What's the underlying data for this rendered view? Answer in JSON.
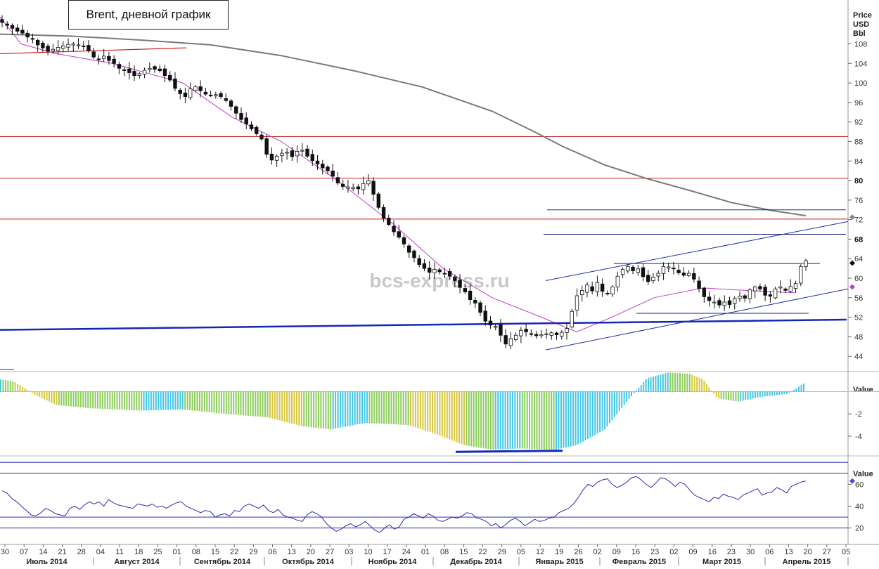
{
  "chart_data": [
    {
      "type": "candlestick",
      "title": "Brent, дневной график",
      "ylabel": "Price\nUSD\nBbl",
      "ylabel_lines": [
        "Price",
        "USD",
        "Bbl"
      ],
      "ylim": [
        41,
        117
      ],
      "yticks": [
        44,
        48,
        52,
        56,
        60,
        64,
        68,
        72,
        76,
        80,
        84,
        88,
        92,
        96,
        100,
        104,
        108
      ],
      "watermark": "bcs-express.ru",
      "x_day_labels": [
        "30",
        "07",
        "14",
        "21",
        "28",
        "04",
        "11",
        "18",
        "25",
        "01",
        "08",
        "15",
        "22",
        "29",
        "06",
        "13",
        "20",
        "27",
        "03",
        "10",
        "17",
        "24",
        "01",
        "08",
        "15",
        "22",
        "29",
        "05",
        "12",
        "19",
        "26",
        "02",
        "09",
        "16",
        "23",
        "02",
        "09",
        "16",
        "23",
        "30",
        "06",
        "13",
        "20",
        "27",
        "05"
      ],
      "x_month_labels": [
        "Июль 2014",
        "Август 2014",
        "Сентябрь 2014",
        "Октябрь 2014",
        "Ноябрь 2014",
        "Декабрь 2014",
        "Январь 2015",
        "Февраль 2015",
        "Март 2015",
        "Апрель 2015"
      ],
      "close_path": [
        112.4,
        111.8,
        111.2,
        110.6,
        110.2,
        109.4,
        109.0,
        107.8,
        107.2,
        106.5,
        106.9,
        107.3,
        107.6,
        107.9,
        108.0,
        107.8,
        107.5,
        106.6,
        105.3,
        104.9,
        105.5,
        104.6,
        104.0,
        103.0,
        102.6,
        102.1,
        101.5,
        101.9,
        102.6,
        103.0,
        102.8,
        102.5,
        101.5,
        100.6,
        98.9,
        97.8,
        97.2,
        98.8,
        99.2,
        98.4,
        97.7,
        97.5,
        97.6,
        97.2,
        96.4,
        95.2,
        93.8,
        92.5,
        91.6,
        90.6,
        89.6,
        88.5,
        85.4,
        84.2,
        85.0,
        85.6,
        85.8,
        84.9,
        86.0,
        86.2,
        85.0,
        84.1,
        83.4,
        82.6,
        82.0,
        80.9,
        79.5,
        78.8,
        78.7,
        78.6,
        78.3,
        79.4,
        80.0,
        77.2,
        74.5,
        72.3,
        71.0,
        69.5,
        68.4,
        67.0,
        65.3,
        64.2,
        62.8,
        62.0,
        61.2,
        61.8,
        61.3,
        61.0,
        60.4,
        59.5,
        58.1,
        57.2,
        55.6,
        54.9,
        53.0,
        51.2,
        50.4,
        50.1,
        48.3,
        46.5,
        47.6,
        48.3,
        49.3,
        49.0,
        48.5,
        48.2,
        48.4,
        48.6,
        48.8,
        48.4,
        48.9,
        49.7,
        53.2,
        56.4,
        57.5,
        58.6,
        57.4,
        59.1,
        57.3,
        56.9,
        58.2,
        60.4,
        61.8,
        62.4,
        61.5,
        61.9,
        60.3,
        59.3,
        60.2,
        61.0,
        62.4,
        62.3,
        61.9,
        61.1,
        60.6,
        61.0,
        59.8,
        57.9,
        56.2,
        55.4,
        55.1,
        54.5,
        55.1,
        54.6,
        55.8,
        56.3,
        55.9,
        57.6,
        58.2,
        57.8,
        56.5,
        56.3,
        57.8,
        58.2,
        57.5,
        58.3,
        58.9,
        62.4,
        63.6
      ],
      "ma_short": {
        "color": "#c03cc8",
        "points": [
          [
            0,
            113.5
          ],
          [
            30,
            108
          ],
          [
            80,
            106
          ],
          [
            160,
            104
          ],
          [
            260,
            100
          ],
          [
            330,
            93
          ],
          [
            400,
            88
          ],
          [
            480,
            80
          ],
          [
            560,
            71
          ],
          [
            630,
            62
          ],
          [
            700,
            56
          ],
          [
            770,
            52
          ],
          [
            820,
            49
          ],
          [
            870,
            52
          ],
          [
            930,
            56
          ],
          [
            1000,
            58
          ],
          [
            1060,
            57.5
          ],
          [
            1130,
            57
          ]
        ]
      },
      "ma_long": {
        "color": "#7a7a7a",
        "points": [
          [
            0,
            110
          ],
          [
            100,
            109.6
          ],
          [
            200,
            108.8
          ],
          [
            300,
            107.8
          ],
          [
            400,
            105.6
          ],
          [
            500,
            102.6
          ],
          [
            600,
            99.2
          ],
          [
            700,
            94.2
          ],
          [
            760,
            90
          ],
          [
            800,
            87
          ],
          [
            860,
            83.2
          ],
          [
            920,
            80.4
          ],
          [
            980,
            78
          ],
          [
            1040,
            75.5
          ],
          [
            1100,
            73.8
          ],
          [
            1146,
            72.8
          ]
        ]
      },
      "horizontal_levels_red": [
        89,
        80.5,
        72.1
      ],
      "red_short_line": {
        "x1": 0,
        "y1": 106,
        "x2": 265,
        "y2": 107.2
      },
      "support_line_blue": {
        "x1": 0,
        "y1": 49.4,
        "x2": 1204,
        "y2": 51.5
      },
      "channel_upper": {
        "x1": 776,
        "y1": 59.5,
        "x2": 1206,
        "y2": 71.6
      },
      "channel_lower": {
        "x1": 776,
        "y1": 45.3,
        "x2": 1206,
        "y2": 57.8
      },
      "navy_levels": [
        {
          "x1": 778,
          "x2": 1203,
          "y": 74
        },
        {
          "x1": 773,
          "x2": 1203,
          "y": 69
        },
        {
          "x1": 873,
          "x2": 1166,
          "y": 63
        },
        {
          "x1": 905,
          "x2": 1150,
          "y": 52.8
        }
      ],
      "right_markers": [
        {
          "value": 72.5,
          "color": "#888888"
        },
        {
          "value": 63.1,
          "color": "#111111"
        },
        {
          "value": 58.2,
          "color": "#c040c8"
        }
      ]
    },
    {
      "type": "histogram",
      "ylabel": "Value",
      "ylim": [
        -5.7,
        1.6
      ],
      "yticks": [
        -2,
        -4
      ],
      "colors": {
        "up": "#44c6e4",
        "down": "#d6c63c",
        "mix": "#8ccc5c"
      },
      "histogram_path": [
        [
          0,
          1.1
        ],
        [
          20,
          0.9
        ],
        [
          50,
          -0.3
        ],
        [
          80,
          -1.2
        ],
        [
          130,
          -1.5
        ],
        [
          200,
          -1.7
        ],
        [
          260,
          -1.6
        ],
        [
          320,
          -2.0
        ],
        [
          380,
          -2.3
        ],
        [
          430,
          -3.1
        ],
        [
          470,
          -3.4
        ],
        [
          520,
          -2.8
        ],
        [
          580,
          -3.0
        ],
        [
          620,
          -3.8
        ],
        [
          660,
          -4.8
        ],
        [
          700,
          -5.2
        ],
        [
          740,
          -5.1
        ],
        [
          790,
          -5.2
        ],
        [
          820,
          -4.8
        ],
        [
          860,
          -3.4
        ],
        [
          890,
          -1.0
        ],
        [
          920,
          1.2
        ],
        [
          950,
          1.7
        ],
        [
          980,
          1.6
        ],
        [
          1000,
          1.1
        ],
        [
          1020,
          -0.6
        ],
        [
          1050,
          -0.9
        ],
        [
          1080,
          -0.5
        ],
        [
          1120,
          -0.2
        ],
        [
          1145,
          0.8
        ]
      ],
      "trend_segment": {
        "x1": 648,
        "y1": -5.4,
        "x2": 800,
        "y2": -5.3
      }
    },
    {
      "type": "line",
      "ylabel": "Value",
      "ylim": [
        5,
        84
      ],
      "yticks": [
        20,
        40,
        60
      ],
      "levels": [
        80,
        70,
        30,
        20
      ],
      "marker": {
        "value": 63,
        "color": "#4a4adc"
      },
      "rsi": [
        54,
        52,
        47,
        44,
        40,
        36,
        32,
        31,
        34,
        38,
        36,
        33,
        32,
        31,
        38,
        40,
        37,
        41,
        44,
        42,
        44,
        40,
        46,
        43,
        41,
        40,
        39,
        38,
        42,
        41,
        40,
        42,
        39,
        40,
        38,
        41,
        43,
        44,
        40,
        38,
        36,
        34,
        36,
        35,
        30,
        32,
        33,
        31,
        36,
        35,
        40,
        42,
        40,
        38,
        41,
        36,
        34,
        37,
        32,
        30,
        29,
        27,
        26,
        32,
        35,
        33,
        30,
        24,
        20,
        17,
        19,
        22,
        24,
        21,
        23,
        26,
        22,
        18,
        16,
        20,
        23,
        19,
        21,
        28,
        30,
        33,
        31,
        29,
        33,
        31,
        27,
        26,
        28,
        30,
        29,
        31,
        34,
        33,
        29,
        28,
        26,
        22,
        24,
        20,
        23,
        27,
        29,
        26,
        22,
        25,
        28,
        26,
        27,
        29,
        30,
        34,
        36,
        38,
        42,
        48,
        55,
        60,
        58,
        62,
        64,
        65,
        60,
        57,
        59,
        62,
        66,
        67,
        64,
        60,
        57,
        61,
        66,
        65,
        62,
        58,
        62,
        60,
        55,
        50,
        48,
        46,
        44,
        48,
        47,
        51,
        49,
        48,
        46,
        50,
        52,
        54,
        56,
        50,
        52,
        53,
        57,
        55,
        52,
        58,
        60,
        62,
        63
      ]
    }
  ]
}
